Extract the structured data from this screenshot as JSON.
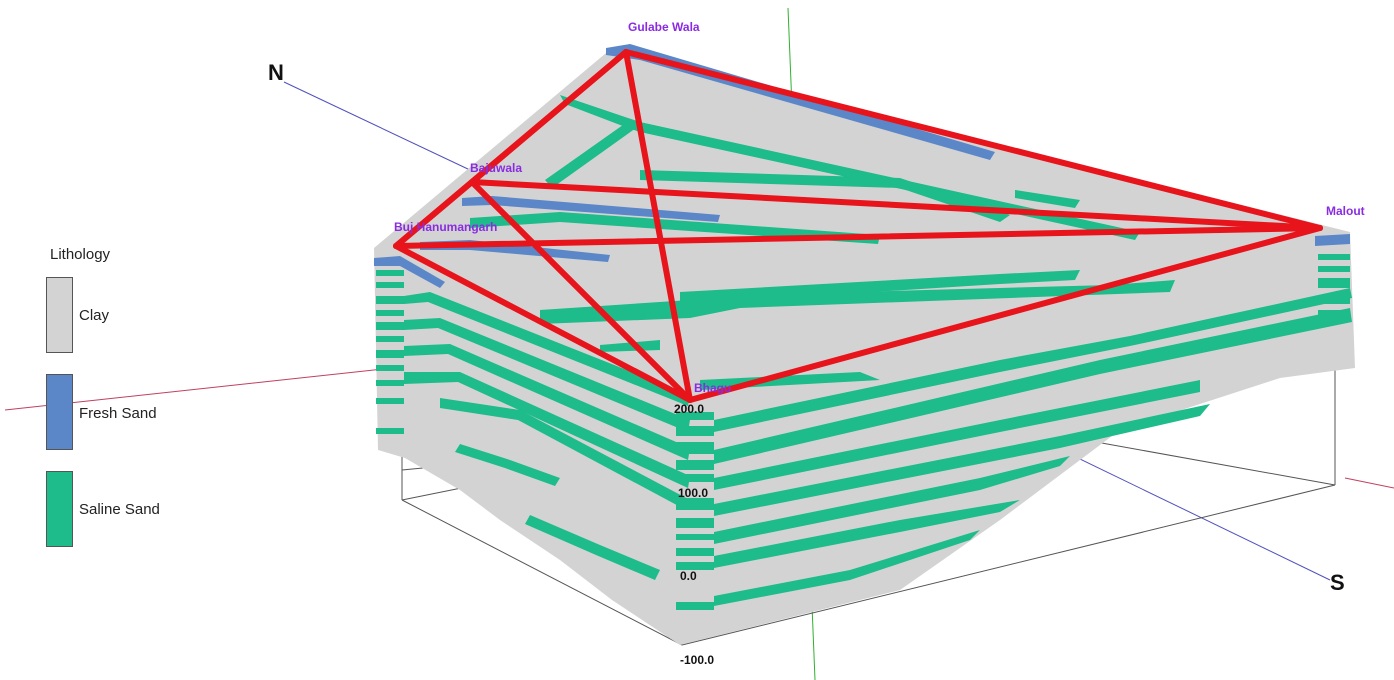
{
  "legend": {
    "title": "Lithology",
    "items": [
      {
        "label": "Clay",
        "color": "#d3d3d3"
      },
      {
        "label": "Fresh Sand",
        "color": "#5b86c8"
      },
      {
        "label": "Saline Sand",
        "color": "#1dbc8a"
      }
    ]
  },
  "wells": {
    "gulabe_wala": "Gulabe Wala",
    "bajuwala": "Bajuwala",
    "buj_hanumangarh": "Buj Hanumangarh",
    "malout": "Malout",
    "bhagu": "Bhagu"
  },
  "compass": {
    "north": "N",
    "south": "S"
  },
  "depth_labels": {
    "d200": "200.0",
    "d100": "100.0",
    "d0": "0.0",
    "dm100": "-100.0"
  },
  "colors": {
    "clay": "#d3d3d3",
    "fresh_sand": "#5b86c8",
    "saline_sand": "#1dbc8a",
    "fence_line": "#e8141b",
    "well_label": "#8a2be2"
  }
}
